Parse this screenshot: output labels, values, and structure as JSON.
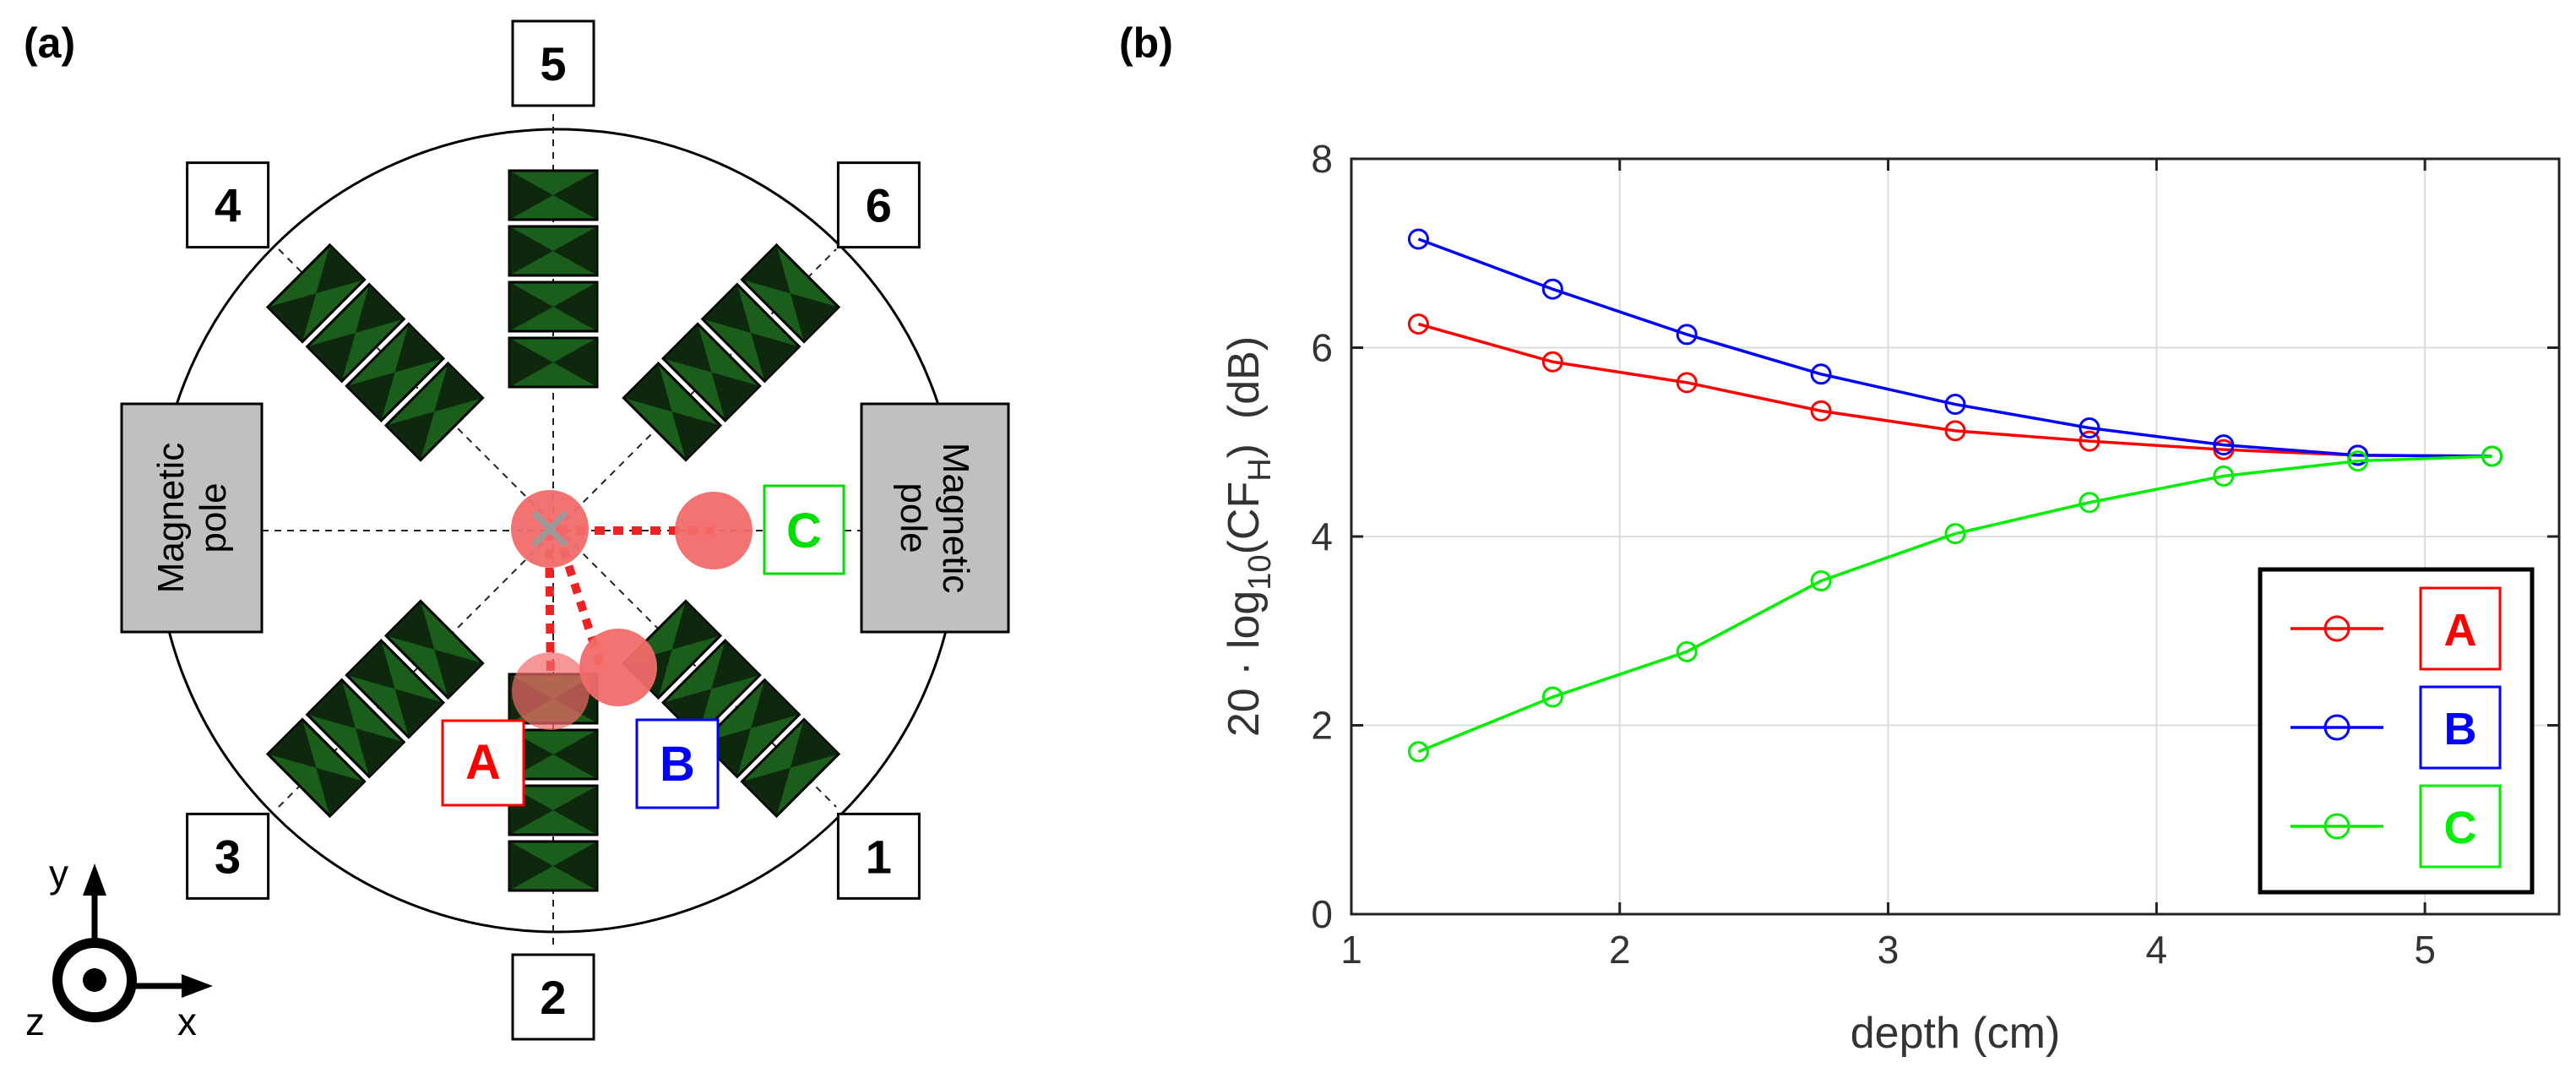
{
  "panel_a": {
    "label": "(a)",
    "coils": [
      {
        "number": "1",
        "angle_deg": -45
      },
      {
        "number": "2",
        "angle_deg": -90
      },
      {
        "number": "3",
        "angle_deg": -135
      },
      {
        "number": "4",
        "angle_deg": 135
      },
      {
        "number": "5",
        "angle_deg": 90
      },
      {
        "number": "6",
        "angle_deg": 45
      }
    ],
    "pole_left": {
      "line1": "Magnetic",
      "line2": "pole"
    },
    "pole_right": {
      "line1": "Magnetic",
      "line2": "pole"
    },
    "markers": [
      {
        "label": "A",
        "color": "#ff0000"
      },
      {
        "label": "B",
        "color": "#0000ff"
      },
      {
        "label": "C",
        "color": "#00dd00"
      }
    ],
    "axes": {
      "x": "x",
      "y": "y",
      "z": "z"
    },
    "colors": {
      "coil": "#1b5e1b",
      "coil_dark": "#0a1f0a",
      "pole": "#c0c0c0",
      "spot": "#f26a6a",
      "path": "#ee2222"
    }
  },
  "panel_b": {
    "label": "(b)"
  },
  "chart_data": {
    "type": "line",
    "title": "",
    "xlabel": "depth (cm)",
    "ylabel": {
      "prefix": "20 · log",
      "sub1": "10",
      "mid": "(CF",
      "sub2": "H",
      "suffix": ")  (dB)"
    },
    "xlim": [
      1,
      5.5
    ],
    "ylim": [
      0,
      8
    ],
    "xticks": [
      1,
      2,
      3,
      4,
      5
    ],
    "yticks": [
      0,
      2,
      4,
      6,
      8
    ],
    "grid": true,
    "legend_position": "bottom-right",
    "series": [
      {
        "name": "A",
        "color": "#ff0000",
        "x": [
          1.25,
          1.75,
          2.25,
          2.75,
          3.25,
          3.75,
          4.25,
          4.75,
          5.25
        ],
        "y": [
          6.25,
          5.85,
          5.63,
          5.33,
          5.12,
          5.01,
          4.92,
          4.86,
          4.85
        ]
      },
      {
        "name": "B",
        "color": "#0000ff",
        "x": [
          1.25,
          1.75,
          2.25,
          2.75,
          3.25,
          3.75,
          4.25,
          4.75,
          5.25
        ],
        "y": [
          7.15,
          6.62,
          6.14,
          5.72,
          5.4,
          5.15,
          4.97,
          4.86,
          4.85
        ]
      },
      {
        "name": "C",
        "color": "#00ee00",
        "x": [
          1.25,
          1.75,
          2.25,
          2.75,
          3.25,
          3.75,
          4.25,
          4.75,
          5.25
        ],
        "y": [
          1.72,
          2.3,
          2.78,
          3.53,
          4.03,
          4.36,
          4.64,
          4.8,
          4.85
        ]
      }
    ]
  }
}
